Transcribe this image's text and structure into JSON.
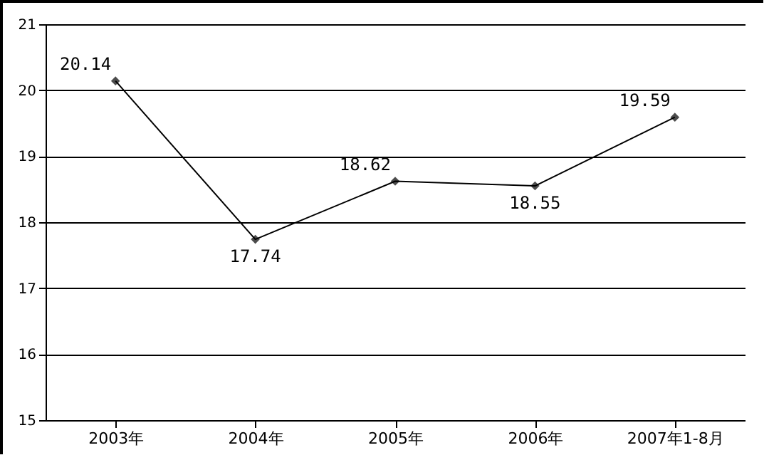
{
  "chart_data": {
    "type": "line",
    "categories": [
      "2003年",
      "2004年",
      "2005年",
      "2006年",
      "2007年1-8月"
    ],
    "values": [
      20.14,
      17.74,
      18.62,
      18.55,
      19.59
    ],
    "color": "#000000",
    "ylim": [
      15,
      21
    ],
    "yticks": [
      15,
      16,
      17,
      18,
      19,
      20,
      21
    ],
    "grid": "y",
    "marker": "diamond",
    "line_style": "solid",
    "data_labels": true
  }
}
